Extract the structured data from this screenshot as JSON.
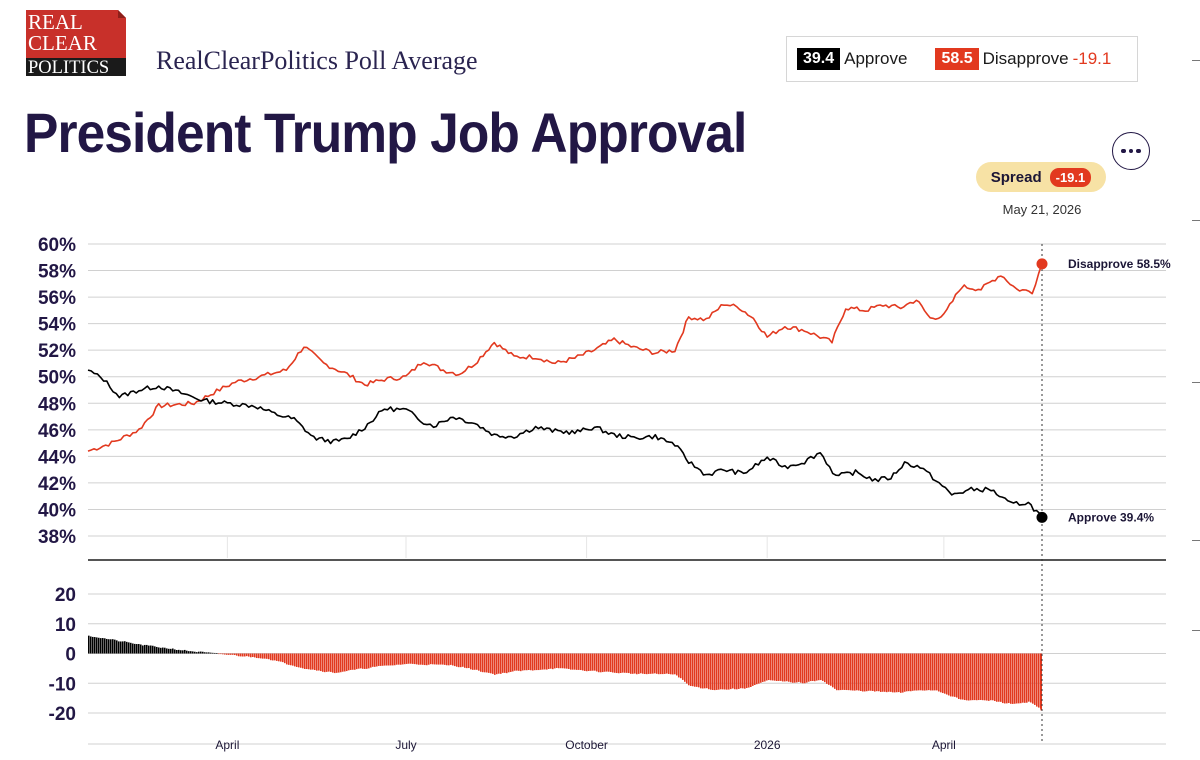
{
  "header": {
    "logo_lines": [
      "REAL",
      "CLEAR",
      "POLITICS"
    ],
    "brand": "RealClearPolitics Poll Average",
    "title": "President Trump Job Approval",
    "more_icon": "ellipsis-icon"
  },
  "summary": {
    "approve_value": "39.4",
    "approve_label": "Approve",
    "disapprove_value": "58.5",
    "disapprove_label": "Disapprove",
    "spread_value": "-19.1"
  },
  "spread_pill": {
    "label": "Spread",
    "value": "-19.1"
  },
  "current_date": "May 21, 2026",
  "colors": {
    "approve": "#000000",
    "disapprove": "#e2391f",
    "title": "#221745",
    "pill": "#f7e2a5"
  },
  "chart_data": [
    {
      "type": "line",
      "ylim": [
        38,
        60
      ],
      "ytick_labels": [
        "60%",
        "58%",
        "56%",
        "54%",
        "52%",
        "50%",
        "48%",
        "46%",
        "44%",
        "42%",
        "40%",
        "38%"
      ],
      "x_start": "2025-01-20",
      "x_end": "2026-05-21",
      "xtick_labels": [
        "April",
        "July",
        "October",
        "2026",
        "April"
      ],
      "xtick_dates": [
        "2025-04-01",
        "2025-07-01",
        "2025-10-01",
        "2026-01-01",
        "2026-04-01"
      ],
      "grid": true,
      "series": [
        {
          "name": "Disapprove",
          "color": "#e2391f",
          "end_label": "Disapprove 58.5%",
          "points": [
            [
              "2025-01-20",
              44.4
            ],
            [
              "2025-02-01",
              45.0
            ],
            [
              "2025-02-15",
              46.0
            ],
            [
              "2025-02-25",
              47.8
            ],
            [
              "2025-03-15",
              48.0
            ],
            [
              "2025-03-25",
              48.8
            ],
            [
              "2025-04-05",
              49.6
            ],
            [
              "2025-04-20",
              50.1
            ],
            [
              "2025-05-01",
              50.5
            ],
            [
              "2025-05-10",
              52.3
            ],
            [
              "2025-05-20",
              51.0
            ],
            [
              "2025-06-01",
              50.2
            ],
            [
              "2025-06-10",
              49.4
            ],
            [
              "2025-06-20",
              49.8
            ],
            [
              "2025-07-01",
              50.0
            ],
            [
              "2025-07-10",
              51.2
            ],
            [
              "2025-07-20",
              50.5
            ],
            [
              "2025-07-28",
              50.2
            ],
            [
              "2025-08-05",
              51.0
            ],
            [
              "2025-08-15",
              52.6
            ],
            [
              "2025-08-25",
              51.5
            ],
            [
              "2025-09-05",
              51.5
            ],
            [
              "2025-09-15",
              51.0
            ],
            [
              "2025-09-25",
              51.4
            ],
            [
              "2025-10-05",
              52.0
            ],
            [
              "2025-10-15",
              52.8
            ],
            [
              "2025-10-25",
              52.2
            ],
            [
              "2025-11-05",
              51.8
            ],
            [
              "2025-11-15",
              52.0
            ],
            [
              "2025-11-22",
              54.5
            ],
            [
              "2025-12-01",
              54.3
            ],
            [
              "2025-12-10",
              55.5
            ],
            [
              "2025-12-18",
              55.2
            ],
            [
              "2025-12-25",
              54.4
            ],
            [
              "2026-01-01",
              53.0
            ],
            [
              "2026-01-10",
              53.8
            ],
            [
              "2026-01-20",
              53.5
            ],
            [
              "2026-01-28",
              53.0
            ],
            [
              "2026-02-03",
              52.6
            ],
            [
              "2026-02-10",
              55.2
            ],
            [
              "2026-02-20",
              55.0
            ],
            [
              "2026-03-01",
              55.4
            ],
            [
              "2026-03-10",
              55.2
            ],
            [
              "2026-03-18",
              55.8
            ],
            [
              "2026-03-25",
              54.4
            ],
            [
              "2026-04-01",
              54.6
            ],
            [
              "2026-04-10",
              56.8
            ],
            [
              "2026-04-20",
              56.6
            ],
            [
              "2026-04-30",
              57.7
            ],
            [
              "2026-05-08",
              56.6
            ],
            [
              "2026-05-16",
              56.4
            ],
            [
              "2026-05-21",
              58.5
            ]
          ]
        },
        {
          "name": "Approve",
          "color": "#000000",
          "end_label": "Approve 39.4%",
          "points": [
            [
              "2025-01-20",
              50.5
            ],
            [
              "2025-01-28",
              49.8
            ],
            [
              "2025-02-05",
              48.5
            ],
            [
              "2025-02-15",
              49.0
            ],
            [
              "2025-02-25",
              49.3
            ],
            [
              "2025-03-10",
              48.7
            ],
            [
              "2025-03-20",
              48.2
            ],
            [
              "2025-04-01",
              48.0
            ],
            [
              "2025-04-15",
              47.8
            ],
            [
              "2025-04-25",
              47.2
            ],
            [
              "2025-05-05",
              46.8
            ],
            [
              "2025-05-15",
              45.4
            ],
            [
              "2025-05-25",
              45.1
            ],
            [
              "2025-06-01",
              45.3
            ],
            [
              "2025-06-10",
              46.2
            ],
            [
              "2025-06-20",
              47.6
            ],
            [
              "2025-07-01",
              47.5
            ],
            [
              "2025-07-10",
              46.6
            ],
            [
              "2025-07-15",
              46.3
            ],
            [
              "2025-07-25",
              47.0
            ],
            [
              "2025-08-05",
              46.5
            ],
            [
              "2025-08-15",
              45.6
            ],
            [
              "2025-08-25",
              45.5
            ],
            [
              "2025-09-05",
              46.2
            ],
            [
              "2025-09-15",
              45.9
            ],
            [
              "2025-09-25",
              45.8
            ],
            [
              "2025-10-05",
              46.2
            ],
            [
              "2025-10-15",
              45.6
            ],
            [
              "2025-10-25",
              45.4
            ],
            [
              "2025-11-05",
              45.5
            ],
            [
              "2025-11-15",
              44.9
            ],
            [
              "2025-11-22",
              43.6
            ],
            [
              "2025-12-01",
              42.6
            ],
            [
              "2025-12-10",
              43.0
            ],
            [
              "2025-12-20",
              42.7
            ],
            [
              "2026-01-01",
              43.9
            ],
            [
              "2026-01-10",
              43.2
            ],
            [
              "2026-01-20",
              43.6
            ],
            [
              "2026-01-28",
              44.3
            ],
            [
              "2026-02-05",
              42.5
            ],
            [
              "2026-02-15",
              42.8
            ],
            [
              "2026-02-25",
              42.2
            ],
            [
              "2026-03-05",
              42.4
            ],
            [
              "2026-03-12",
              43.5
            ],
            [
              "2026-03-20",
              43.2
            ],
            [
              "2026-03-28",
              42.2
            ],
            [
              "2026-04-05",
              41.1
            ],
            [
              "2026-04-15",
              41.5
            ],
            [
              "2026-04-25",
              41.5
            ],
            [
              "2026-05-05",
              40.4
            ],
            [
              "2026-05-14",
              40.5
            ],
            [
              "2026-05-21",
              39.4
            ]
          ]
        }
      ]
    },
    {
      "type": "bar",
      "ylim": [
        -20,
        20
      ],
      "ytick_labels": [
        "20",
        "10",
        "0",
        "-10",
        "-20"
      ],
      "ytick_values": [
        20,
        10,
        0,
        -10,
        -20
      ],
      "series": [
        {
          "name": "Spread",
          "positive_color": "#000000",
          "negative_color": "#e2391f",
          "points": [
            [
              "2025-01-20",
              6.0
            ],
            [
              "2025-02-15",
              3.0
            ],
            [
              "2025-03-10",
              1.0
            ],
            [
              "2025-03-25",
              0.0
            ],
            [
              "2025-04-20",
              -1.6
            ],
            [
              "2025-05-10",
              -5.0
            ],
            [
              "2025-05-25",
              -6.5
            ],
            [
              "2025-06-15",
              -4.5
            ],
            [
              "2025-07-01",
              -3.5
            ],
            [
              "2025-07-25",
              -4.0
            ],
            [
              "2025-08-15",
              -7.0
            ],
            [
              "2025-08-25",
              -6.0
            ],
            [
              "2025-09-15",
              -5.0
            ],
            [
              "2025-10-05",
              -6.0
            ],
            [
              "2025-10-25",
              -6.8
            ],
            [
              "2025-11-15",
              -7.0
            ],
            [
              "2025-11-22",
              -10.9
            ],
            [
              "2025-12-05",
              -12.2
            ],
            [
              "2025-12-20",
              -11.8
            ],
            [
              "2026-01-01",
              -9.1
            ],
            [
              "2026-01-20",
              -9.9
            ],
            [
              "2026-01-28",
              -8.7
            ],
            [
              "2026-02-05",
              -12.3
            ],
            [
              "2026-02-20",
              -12.6
            ],
            [
              "2026-03-10",
              -13.2
            ],
            [
              "2026-03-18",
              -12.3
            ],
            [
              "2026-03-28",
              -12.4
            ],
            [
              "2026-04-10",
              -15.7
            ],
            [
              "2026-04-25",
              -15.8
            ],
            [
              "2026-05-05",
              -17.0
            ],
            [
              "2026-05-14",
              -16.3
            ],
            [
              "2026-05-21",
              -19.1
            ]
          ]
        }
      ]
    }
  ]
}
